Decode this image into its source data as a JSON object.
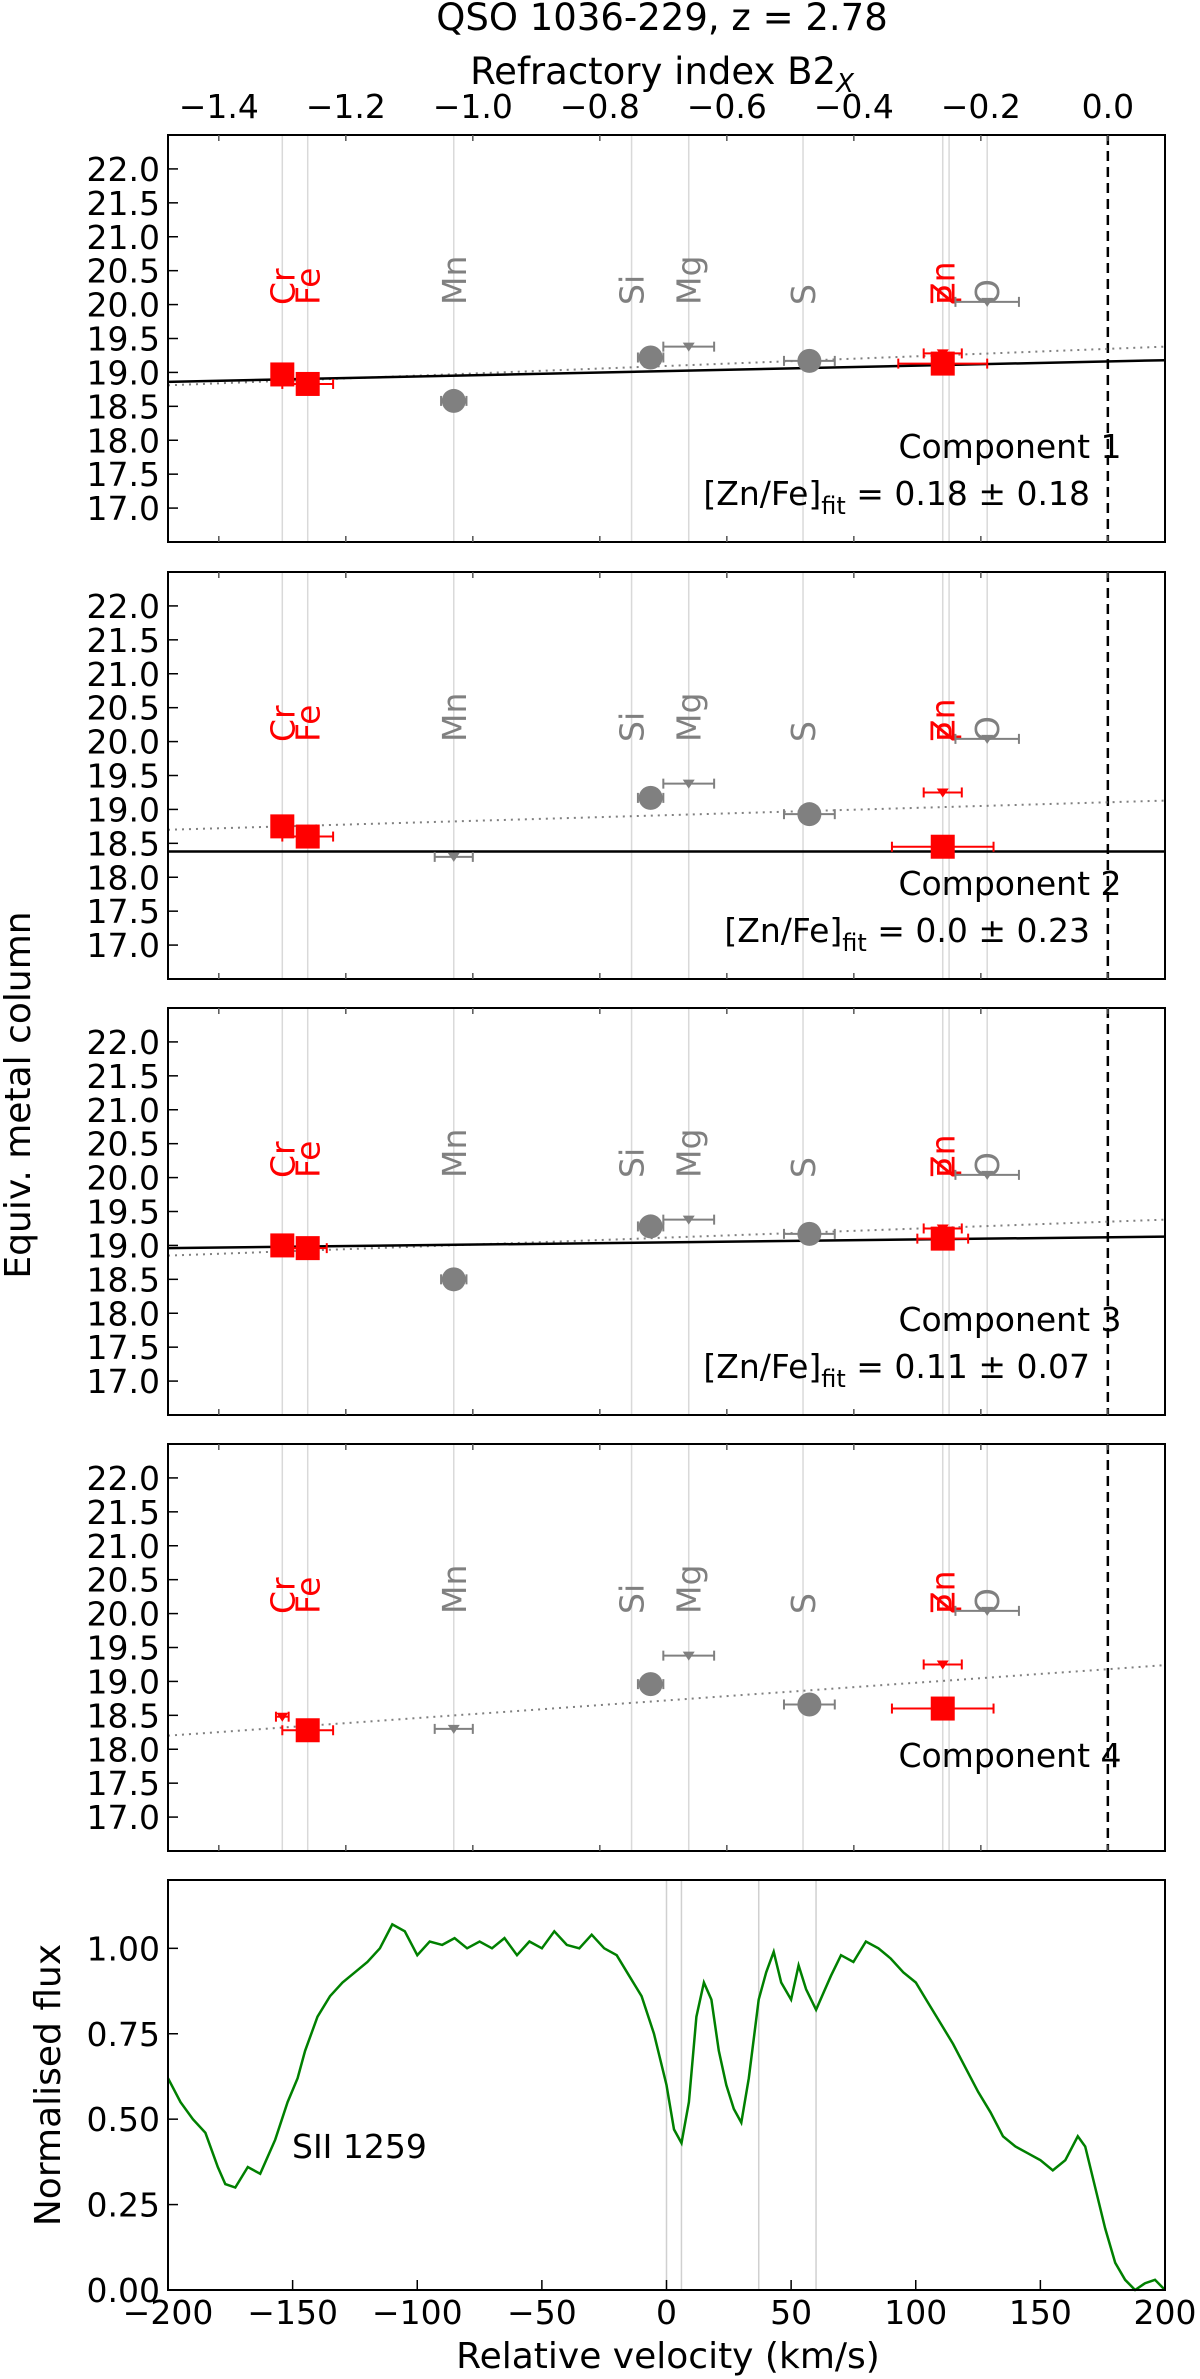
{
  "figure": {
    "title": "QSO 1036-229, z = 2.78",
    "top_axis_label": "Refractory index B2",
    "top_axis_label_sub": "X",
    "y_axis_label": "Equiv. metal column"
  },
  "chart_data": [
    {
      "type": "scatter",
      "xlabel": "Refractory index B2_X",
      "xlim": [
        -1.48,
        0.09
      ],
      "ylim": [
        16.5,
        22.5
      ],
      "xticks": [
        "−1.4",
        "−1.2",
        "−1.0",
        "−0.8",
        "−0.6",
        "−0.4",
        "−0.2",
        "0.0"
      ],
      "xtick_values": [
        -1.4,
        -1.2,
        -1.0,
        -0.8,
        -0.6,
        -0.4,
        -0.2,
        0.0
      ],
      "yticks": [
        "17.0",
        "17.5",
        "18.0",
        "18.5",
        "19.0",
        "19.5",
        "20.0",
        "20.5",
        "21.0",
        "21.5",
        "22.0"
      ],
      "ytick_values": [
        17.0,
        17.5,
        18.0,
        18.5,
        19.0,
        19.5,
        20.0,
        20.5,
        21.0,
        21.5,
        22.0
      ],
      "elements": [
        {
          "name": "Cr",
          "x": -1.3,
          "color": "#ff0000"
        },
        {
          "name": "Fe",
          "x": -1.26,
          "color": "#ff0000"
        },
        {
          "name": "Mn",
          "x": -1.03,
          "color": "#808080"
        },
        {
          "name": "Si",
          "x": -0.75,
          "color": "#808080"
        },
        {
          "name": "Mg",
          "x": -0.66,
          "color": "#808080"
        },
        {
          "name": "S",
          "x": -0.48,
          "color": "#808080"
        },
        {
          "name": "Zn",
          "x": -0.26,
          "color": "#ff0000"
        },
        {
          "name": "P",
          "x": -0.25,
          "color": "#ff0000"
        },
        {
          "name": "O",
          "x": -0.19,
          "color": "#808080"
        }
      ],
      "zero_line_x": 0.0,
      "panels": [
        {
          "label": "Component 1",
          "fit_text": "[Zn/Fe]",
          "fit_sub": "fit",
          "fit_value": " = 0.18 ± 0.18",
          "solid_line": [
            [
              -1.48,
              18.86
            ],
            [
              0.09,
              19.18
            ]
          ],
          "dotted_line": [
            [
              -1.48,
              18.81
            ],
            [
              0.09,
              19.38
            ]
          ],
          "points": [
            {
              "el": "Cr",
              "x": -1.3,
              "y": 18.97,
              "kind": "square",
              "color": "#ff0000",
              "xerr": 0.01
            },
            {
              "el": "Fe",
              "x": -1.26,
              "y": 18.83,
              "kind": "square",
              "color": "#ff0000",
              "xerr": 0.04
            },
            {
              "el": "Mn",
              "x": -1.03,
              "y": 18.58,
              "kind": "circle",
              "color": "#808080",
              "xerr": 0.02
            },
            {
              "el": "Si",
              "x": -0.72,
              "y": 19.22,
              "kind": "circle",
              "color": "#808080",
              "xerr": 0.02
            },
            {
              "el": "Mg",
              "x": -0.66,
              "y": 19.38,
              "kind": "upper",
              "color": "#808080",
              "xerr": 0.04
            },
            {
              "el": "S",
              "x": -0.47,
              "y": 19.17,
              "kind": "circle",
              "color": "#808080",
              "xerr": 0.04
            },
            {
              "el": "Zn",
              "x": -0.26,
              "y": 19.28,
              "kind": "upper",
              "color": "#ff0000",
              "xerr": 0.03
            },
            {
              "el": "P",
              "x": -0.26,
              "y": 19.13,
              "kind": "square",
              "color": "#ff0000",
              "xerr": 0.07
            },
            {
              "el": "O",
              "x": -0.19,
              "y": 20.04,
              "kind": "upper",
              "color": "#808080",
              "xerr": 0.05
            }
          ]
        },
        {
          "label": "Component 2",
          "fit_text": "[Zn/Fe]",
          "fit_sub": "fit",
          "fit_value": " = 0.0 ± 0.23",
          "solid_line": [
            [
              -1.48,
              18.38
            ],
            [
              0.09,
              18.38
            ]
          ],
          "dotted_line": [
            [
              -1.48,
              18.7
            ],
            [
              0.09,
              19.13
            ]
          ],
          "points": [
            {
              "el": "Cr",
              "x": -1.3,
              "y": 18.75,
              "kind": "square",
              "color": "#ff0000",
              "xerr": 0.01
            },
            {
              "el": "Fe",
              "x": -1.26,
              "y": 18.6,
              "kind": "square",
              "color": "#ff0000",
              "xerr": 0.04
            },
            {
              "el": "Mn",
              "x": -1.03,
              "y": 18.3,
              "kind": "upper",
              "color": "#808080",
              "xerr": 0.03
            },
            {
              "el": "Si",
              "x": -0.72,
              "y": 19.17,
              "kind": "circle",
              "color": "#808080",
              "xerr": 0.02
            },
            {
              "el": "Mg",
              "x": -0.66,
              "y": 19.38,
              "kind": "upper",
              "color": "#808080",
              "xerr": 0.04
            },
            {
              "el": "S",
              "x": -0.47,
              "y": 18.93,
              "kind": "circle",
              "color": "#808080",
              "xerr": 0.04
            },
            {
              "el": "Zn",
              "x": -0.26,
              "y": 19.25,
              "kind": "upper",
              "color": "#ff0000",
              "xerr": 0.03
            },
            {
              "el": "P",
              "x": -0.26,
              "y": 18.45,
              "kind": "square",
              "color": "#ff0000",
              "xerr": 0.08
            },
            {
              "el": "O",
              "x": -0.19,
              "y": 20.04,
              "kind": "upper",
              "color": "#808080",
              "xerr": 0.05
            }
          ]
        },
        {
          "label": "Component 3",
          "fit_text": "[Zn/Fe]",
          "fit_sub": "fit",
          "fit_value": " = 0.11 ± 0.07",
          "solid_line": [
            [
              -1.48,
              18.96
            ],
            [
              0.09,
              19.13
            ]
          ],
          "dotted_line": [
            [
              -1.48,
              18.85
            ],
            [
              0.09,
              19.38
            ]
          ],
          "points": [
            {
              "el": "Cr",
              "x": -1.3,
              "y": 19.0,
              "kind": "square",
              "color": "#ff0000",
              "xerr": 0.01
            },
            {
              "el": "Fe",
              "x": -1.26,
              "y": 18.96,
              "kind": "square",
              "color": "#ff0000",
              "xerr": 0.03
            },
            {
              "el": "Mn",
              "x": -1.03,
              "y": 18.5,
              "kind": "circle",
              "color": "#808080",
              "xerr": 0.02
            },
            {
              "el": "Si",
              "x": -0.72,
              "y": 19.28,
              "kind": "circle",
              "color": "#808080",
              "xerr": 0.02
            },
            {
              "el": "Mg",
              "x": -0.66,
              "y": 19.38,
              "kind": "upper",
              "color": "#808080",
              "xerr": 0.04
            },
            {
              "el": "S",
              "x": -0.47,
              "y": 19.17,
              "kind": "circle",
              "color": "#808080",
              "xerr": 0.04
            },
            {
              "el": "Zn",
              "x": -0.26,
              "y": 19.25,
              "kind": "upper",
              "color": "#ff0000",
              "xerr": 0.03
            },
            {
              "el": "P",
              "x": -0.26,
              "y": 19.1,
              "kind": "square",
              "color": "#ff0000",
              "xerr": 0.04
            },
            {
              "el": "O",
              "x": -0.19,
              "y": 20.04,
              "kind": "upper",
              "color": "#808080",
              "xerr": 0.05
            }
          ]
        },
        {
          "label": "Component 4",
          "fit_text": "",
          "fit_sub": "",
          "fit_value": "",
          "solid_line": null,
          "dotted_line": [
            [
              -1.48,
              18.2
            ],
            [
              0.09,
              19.24
            ]
          ],
          "points": [
            {
              "el": "Cr",
              "x": -1.3,
              "y": 18.48,
              "kind": "upper",
              "color": "#ff0000",
              "xerr": 0.01
            },
            {
              "el": "Fe",
              "x": -1.26,
              "y": 18.28,
              "kind": "square",
              "color": "#ff0000",
              "xerr": 0.04
            },
            {
              "el": "Mn",
              "x": -1.03,
              "y": 18.3,
              "kind": "upper",
              "color": "#808080",
              "xerr": 0.03
            },
            {
              "el": "Si",
              "x": -0.72,
              "y": 18.96,
              "kind": "circle",
              "color": "#808080",
              "xerr": 0.02
            },
            {
              "el": "Mg",
              "x": -0.66,
              "y": 19.38,
              "kind": "upper",
              "color": "#808080",
              "xerr": 0.04
            },
            {
              "el": "S",
              "x": -0.47,
              "y": 18.66,
              "kind": "circle",
              "color": "#808080",
              "xerr": 0.04
            },
            {
              "el": "Zn",
              "x": -0.26,
              "y": 19.25,
              "kind": "upper",
              "color": "#ff0000",
              "xerr": 0.03
            },
            {
              "el": "P",
              "x": -0.26,
              "y": 18.6,
              "kind": "square",
              "color": "#ff0000",
              "xerr": 0.08
            },
            {
              "el": "O",
              "x": -0.19,
              "y": 20.04,
              "kind": "upper",
              "color": "#808080",
              "xerr": 0.05
            }
          ]
        }
      ]
    },
    {
      "type": "line",
      "xlabel": "Relative velocity (km/s)",
      "ylabel": "Normalised flux",
      "xlim": [
        -200,
        200
      ],
      "ylim": [
        0,
        1.2
      ],
      "xticks": [
        "−200",
        "−150",
        "−100",
        "−50",
        "0",
        "50",
        "100",
        "150",
        "200"
      ],
      "xtick_values": [
        -200,
        -150,
        -100,
        -50,
        0,
        50,
        100,
        150,
        200
      ],
      "yticks": [
        "0.00",
        "0.25",
        "0.50",
        "0.75",
        "1.00"
      ],
      "ytick_values": [
        0,
        0.25,
        0.5,
        0.75,
        1.0
      ],
      "annotation": "SII 1259",
      "line_color": "#008000",
      "component_lines_x": [
        0,
        6,
        37,
        60
      ],
      "series": [
        {
          "x": [
            -200,
            -195,
            -190,
            -185,
            -180,
            -177,
            -173,
            -168,
            -163,
            -157,
            -152,
            -148,
            -145,
            -140,
            -135,
            -130,
            -125,
            -120,
            -115,
            -110,
            -105,
            -100,
            -95,
            -90,
            -85,
            -80,
            -75,
            -70,
            -65,
            -60,
            -55,
            -50,
            -45,
            -40,
            -35,
            -30,
            -25,
            -20,
            -15,
            -10,
            -5,
            0,
            3,
            6,
            9,
            12,
            15,
            18,
            21,
            24,
            27,
            30,
            33,
            37,
            40,
            43,
            46,
            50,
            53,
            56,
            60,
            63,
            66,
            70,
            75,
            80,
            85,
            90,
            95,
            100,
            105,
            110,
            115,
            120,
            125,
            130,
            135,
            140,
            145,
            150,
            155,
            160,
            165,
            168,
            172,
            176,
            180,
            184,
            188,
            192,
            196,
            200
          ],
          "y": [
            0.62,
            0.55,
            0.5,
            0.46,
            0.36,
            0.31,
            0.3,
            0.36,
            0.34,
            0.44,
            0.55,
            0.62,
            0.7,
            0.8,
            0.86,
            0.9,
            0.93,
            0.96,
            1.0,
            1.07,
            1.05,
            0.98,
            1.02,
            1.01,
            1.03,
            1.0,
            1.02,
            1.0,
            1.03,
            0.98,
            1.02,
            1.0,
            1.05,
            1.01,
            1.0,
            1.04,
            1.0,
            0.98,
            0.92,
            0.86,
            0.75,
            0.6,
            0.47,
            0.43,
            0.55,
            0.8,
            0.9,
            0.85,
            0.7,
            0.6,
            0.53,
            0.49,
            0.62,
            0.85,
            0.93,
            0.99,
            0.9,
            0.85,
            0.95,
            0.88,
            0.82,
            0.87,
            0.92,
            0.98,
            0.96,
            1.02,
            1.0,
            0.97,
            0.93,
            0.9,
            0.84,
            0.78,
            0.72,
            0.65,
            0.58,
            0.52,
            0.45,
            0.42,
            0.4,
            0.38,
            0.35,
            0.38,
            0.45,
            0.42,
            0.3,
            0.18,
            0.08,
            0.03,
            0.0,
            0.02,
            0.03,
            0.0
          ]
        }
      ]
    }
  ]
}
